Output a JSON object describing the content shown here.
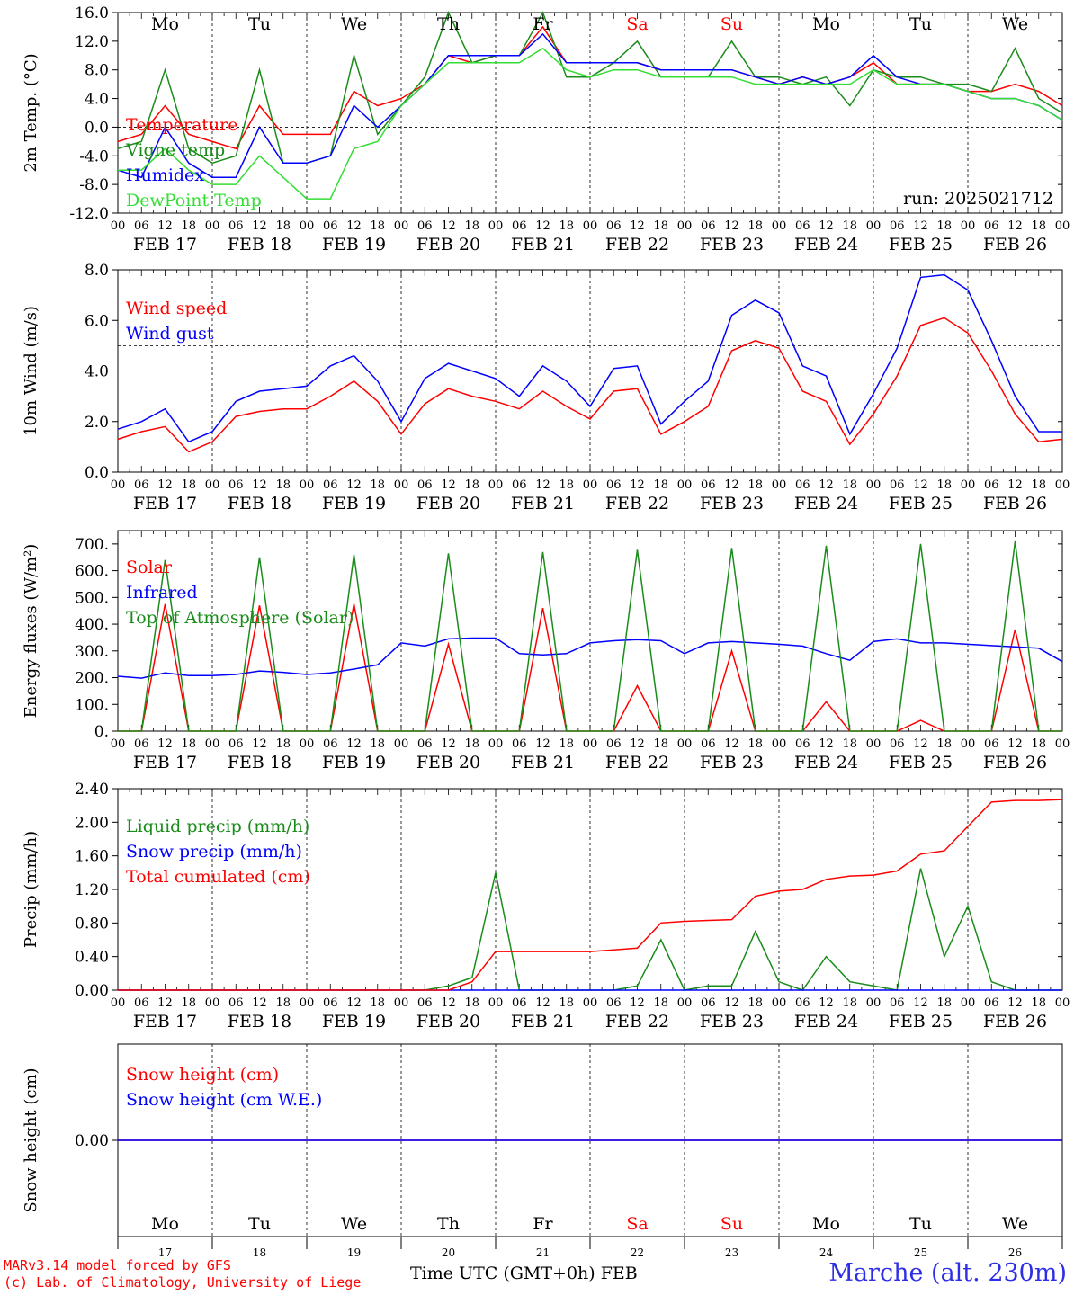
{
  "days": [
    {
      "abbr": "Mo",
      "date": "FEB 17",
      "num": "17",
      "color": "#000000"
    },
    {
      "abbr": "Tu",
      "date": "FEB 18",
      "num": "18",
      "color": "#000000"
    },
    {
      "abbr": "We",
      "date": "FEB 19",
      "num": "19",
      "color": "#000000"
    },
    {
      "abbr": "Th",
      "date": "FEB 20",
      "num": "20",
      "color": "#000000"
    },
    {
      "abbr": "Fr",
      "date": "FEB 21",
      "num": "21",
      "color": "#000000"
    },
    {
      "abbr": "Sa",
      "date": "FEB 22",
      "num": "22",
      "color": "#ff0000"
    },
    {
      "abbr": "Su",
      "date": "FEB 23",
      "num": "23",
      "color": "#ff0000"
    },
    {
      "abbr": "Mo",
      "date": "FEB 24",
      "num": "24",
      "color": "#000000"
    },
    {
      "abbr": "Tu",
      "date": "FEB 25",
      "num": "25",
      "color": "#000000"
    },
    {
      "abbr": "We",
      "date": "FEB 26",
      "num": "26",
      "color": "#000000"
    }
  ],
  "hour_ticks": [
    "00",
    "06",
    "12",
    "18"
  ],
  "footer": {
    "model": "MARv3.14 model forced by GFS",
    "copyright": "(c) Lab. of Climatology, University of Liege",
    "axis_label": "Time UTC (GMT+0h) FEB",
    "station": "Marche (alt. 230m)"
  },
  "chart_data": [
    {
      "id": "temp",
      "type": "line",
      "ylabel": "2m Temp. (°C)",
      "ylim": [
        -12,
        16
      ],
      "yticks": [
        "16.0",
        "12.0",
        "8.0",
        "4.0",
        "0.0",
        "-4.0",
        "-8.0",
        "-12.0"
      ],
      "ref_line": 0,
      "annotation": "run: 2025021712",
      "x_hours": [
        0,
        6,
        12,
        18,
        24,
        30,
        36,
        42,
        48,
        54,
        60,
        66,
        72,
        78,
        84,
        90,
        96,
        102,
        108,
        114,
        120,
        126,
        132,
        138,
        144,
        150,
        156,
        162,
        168,
        174,
        180,
        186,
        192,
        198,
        204,
        210,
        216,
        222,
        228,
        234,
        240
      ],
      "series": [
        {
          "name": "Temperature",
          "color": "#ff0000",
          "values": [
            -2,
            -1,
            3,
            -1,
            -2,
            -3,
            3,
            -1,
            -1,
            -1,
            5,
            3,
            4,
            6,
            10,
            9,
            10,
            10,
            14,
            9,
            9,
            9,
            9,
            8,
            8,
            8,
            8,
            7,
            6,
            7,
            6,
            7,
            9,
            6,
            6,
            6,
            5,
            5,
            6,
            5,
            3
          ]
        },
        {
          "name": "Vigne temp",
          "color": "#1a8c1a",
          "values": [
            -3,
            -2,
            8,
            -3,
            -5,
            -4,
            8,
            -5,
            -5,
            -4,
            10,
            -1,
            3,
            7,
            16,
            9,
            10,
            10,
            16,
            7,
            7,
            9,
            12,
            7,
            7,
            7,
            12,
            7,
            7,
            6,
            7,
            3,
            8,
            7,
            7,
            6,
            6,
            5,
            11,
            4,
            2
          ]
        },
        {
          "name": "Humidex",
          "color": "#0000ff",
          "values": [
            -6,
            -7,
            0,
            -5,
            -7,
            -7,
            0,
            -5,
            -5,
            -4,
            3,
            0,
            3,
            6,
            10,
            10,
            10,
            10,
            13,
            9,
            9,
            9,
            9,
            8,
            8,
            8,
            8,
            7,
            6,
            7,
            6,
            7,
            10,
            7,
            6,
            6,
            5,
            4,
            4,
            3,
            1
          ]
        },
        {
          "name": "DewPoint Temp",
          "color": "#33dd33",
          "values": [
            -6,
            -6,
            -3,
            -6,
            -8,
            -8,
            -4,
            -7,
            -10,
            -10,
            -3,
            -2,
            3,
            6,
            9,
            9,
            9,
            9,
            11,
            8,
            7,
            8,
            8,
            7,
            7,
            7,
            7,
            6,
            6,
            6,
            6,
            6,
            8,
            6,
            6,
            6,
            5,
            4,
            4,
            3,
            1
          ]
        }
      ]
    },
    {
      "id": "wind",
      "type": "line",
      "ylabel": "10m Wind (m/s)",
      "ylim": [
        0,
        8
      ],
      "yticks": [
        "8.0",
        "6.0",
        "4.0",
        "2.0",
        "0.0"
      ],
      "ref_line": 5,
      "x_hours": [
        0,
        6,
        12,
        18,
        24,
        30,
        36,
        42,
        48,
        54,
        60,
        66,
        72,
        78,
        84,
        90,
        96,
        102,
        108,
        114,
        120,
        126,
        132,
        138,
        144,
        150,
        156,
        162,
        168,
        174,
        180,
        186,
        192,
        198,
        204,
        210,
        216,
        222,
        228,
        234,
        240
      ],
      "series": [
        {
          "name": "Wind speed",
          "color": "#ff0000",
          "values": [
            1.3,
            1.6,
            1.8,
            0.8,
            1.2,
            2.2,
            2.4,
            2.5,
            2.5,
            3.0,
            3.6,
            2.8,
            1.5,
            2.7,
            3.3,
            3.0,
            2.8,
            2.5,
            3.2,
            2.6,
            2.1,
            3.2,
            3.3,
            1.5,
            2.0,
            2.6,
            4.8,
            5.2,
            4.9,
            3.2,
            2.8,
            1.1,
            2.3,
            3.8,
            5.8,
            6.1,
            5.5,
            4.0,
            2.3,
            1.2,
            1.3
          ]
        },
        {
          "name": "Wind gust",
          "color": "#0000ff",
          "values": [
            1.7,
            2.0,
            2.5,
            1.2,
            1.6,
            2.8,
            3.2,
            3.3,
            3.4,
            4.2,
            4.6,
            3.6,
            2.0,
            3.7,
            4.3,
            4.0,
            3.7,
            3.0,
            4.2,
            3.6,
            2.6,
            4.1,
            4.2,
            1.9,
            2.8,
            3.6,
            6.2,
            6.8,
            6.3,
            4.2,
            3.8,
            1.5,
            3.1,
            4.9,
            7.7,
            7.8,
            7.2,
            5.2,
            3.0,
            1.6,
            1.6
          ]
        }
      ]
    },
    {
      "id": "flux",
      "type": "line",
      "ylabel": "Energy fluxes (W/m²)",
      "ylim": [
        0,
        750
      ],
      "yticks": [
        "700.",
        "600.",
        "500.",
        "400.",
        "300.",
        "200.",
        "100.",
        "0."
      ],
      "ref_line": null,
      "x_hours": [
        0,
        6,
        12,
        18,
        24,
        30,
        36,
        42,
        48,
        54,
        60,
        66,
        72,
        78,
        84,
        90,
        96,
        102,
        108,
        114,
        120,
        126,
        132,
        138,
        144,
        150,
        156,
        162,
        168,
        174,
        180,
        186,
        192,
        198,
        204,
        210,
        216,
        222,
        228,
        234,
        240
      ],
      "series": [
        {
          "name": "Solar",
          "color": "#ff0000",
          "values": [
            0,
            0,
            475,
            0,
            0,
            0,
            470,
            0,
            0,
            0,
            475,
            0,
            0,
            0,
            325,
            0,
            0,
            0,
            460,
            0,
            0,
            0,
            170,
            0,
            0,
            0,
            300,
            0,
            0,
            0,
            110,
            0,
            0,
            0,
            40,
            0,
            0,
            0,
            380,
            0,
            0
          ]
        },
        {
          "name": "Infrared",
          "color": "#0000ff",
          "values": [
            205,
            198,
            218,
            208,
            208,
            212,
            225,
            220,
            212,
            218,
            232,
            248,
            330,
            318,
            345,
            348,
            348,
            290,
            285,
            290,
            330,
            338,
            342,
            338,
            290,
            330,
            335,
            330,
            325,
            318,
            290,
            265,
            335,
            345,
            330,
            330,
            325,
            320,
            315,
            310,
            260
          ]
        },
        {
          "name": "Top of Atmosphere (Solar)",
          "color": "#1a8c1a",
          "values": [
            0,
            0,
            640,
            0,
            0,
            0,
            650,
            0,
            0,
            0,
            660,
            0,
            0,
            0,
            665,
            0,
            0,
            0,
            670,
            0,
            0,
            0,
            678,
            0,
            0,
            0,
            685,
            0,
            0,
            0,
            693,
            0,
            0,
            0,
            700,
            0,
            0,
            0,
            710,
            0,
            0
          ]
        }
      ]
    },
    {
      "id": "precip",
      "type": "line",
      "ylabel": "Precip (mm/h)",
      "ylim": [
        0,
        2.4
      ],
      "yticks": [
        "2.40",
        "2.00",
        "1.60",
        "1.20",
        "0.80",
        "0.40",
        "0.00"
      ],
      "ref_line": null,
      "x_hours": [
        0,
        6,
        12,
        18,
        24,
        30,
        36,
        42,
        48,
        54,
        60,
        66,
        72,
        78,
        84,
        90,
        96,
        102,
        108,
        114,
        120,
        126,
        132,
        138,
        144,
        150,
        156,
        162,
        168,
        174,
        180,
        186,
        192,
        198,
        204,
        210,
        216,
        222,
        228,
        234,
        240
      ],
      "series": [
        {
          "name": "Liquid precip (mm/h)",
          "color": "#1a8c1a",
          "values": [
            0,
            0,
            0,
            0,
            0,
            0,
            0,
            0,
            0,
            0,
            0,
            0,
            0,
            0,
            0.05,
            0.15,
            1.4,
            0,
            0,
            0,
            0,
            0,
            0.05,
            0.6,
            0,
            0.05,
            0.05,
            0.7,
            0.1,
            0,
            0.4,
            0.1,
            0.05,
            0,
            1.45,
            0.4,
            1.0,
            0.1,
            0,
            0,
            0
          ]
        },
        {
          "name": "Snow precip (mm/h)",
          "color": "#0000ff",
          "values": [
            0,
            0,
            0,
            0,
            0,
            0,
            0,
            0,
            0,
            0,
            0,
            0,
            0,
            0,
            0,
            0,
            0,
            0,
            0,
            0,
            0,
            0,
            0,
            0,
            0,
            0,
            0,
            0,
            0,
            0,
            0,
            0,
            0,
            0,
            0,
            0,
            0,
            0,
            0,
            0,
            0
          ]
        },
        {
          "name": "Total cumulated (cm)",
          "color": "#ff0000",
          "values": [
            0,
            0,
            0,
            0,
            0,
            0,
            0,
            0,
            0,
            0,
            0,
            0,
            0,
            0,
            0,
            0.1,
            0.46,
            0.46,
            0.46,
            0.46,
            0.46,
            0.48,
            0.5,
            0.8,
            0.82,
            0.83,
            0.84,
            1.12,
            1.18,
            1.2,
            1.32,
            1.36,
            1.37,
            1.42,
            1.62,
            1.66,
            1.95,
            2.24,
            2.26,
            2.26,
            2.27
          ]
        }
      ]
    },
    {
      "id": "snow",
      "type": "line",
      "ylabel": "Snow height (cm)",
      "ylim": [
        -1,
        1
      ],
      "yticks": [
        "0.00"
      ],
      "ref_line": null,
      "x_hours": [
        0,
        240
      ],
      "series": [
        {
          "name": "Snow height (cm)",
          "color": "#ff0000",
          "values": [
            0,
            0
          ]
        },
        {
          "name": "Snow height (cm W.E.)",
          "color": "#0000ff",
          "values": [
            0,
            0
          ]
        }
      ]
    }
  ]
}
